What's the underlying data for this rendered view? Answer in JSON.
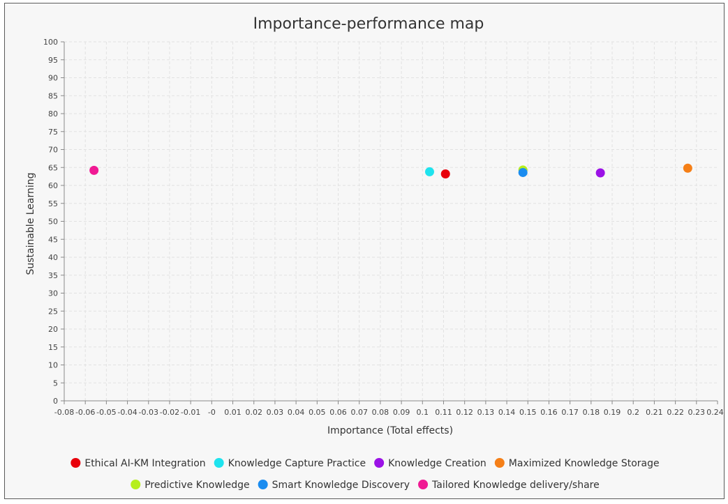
{
  "chart_data": {
    "type": "scatter",
    "title": "Importance-performance map",
    "xlabel": "Importance (Total effects)",
    "ylabel": "Sustainable Learning",
    "xlim": [
      -0.08,
      0.249
    ],
    "ylim": [
      0,
      100
    ],
    "x_tick_labels": [
      "-0.08",
      "-0.06",
      "-0.05",
      "-0.04",
      "-0.03",
      "-0.02",
      "-0.01",
      "-0",
      "0.01",
      "0.02",
      "0.03",
      "0.04",
      "0.05",
      "0.06",
      "0.07",
      "0.08",
      "0.09",
      "0.1",
      "0.11",
      "0.12",
      "0.13",
      "0.14",
      "0.15",
      "0.16",
      "0.17",
      "0.18",
      "0.19",
      "0.2",
      "0.21",
      "0.22",
      "0.23",
      "0.249"
    ],
    "y_ticks": [
      0,
      5,
      10,
      15,
      20,
      25,
      30,
      35,
      40,
      45,
      50,
      55,
      60,
      65,
      70,
      75,
      80,
      85,
      90,
      95,
      100
    ],
    "grid": true,
    "legend_position": "bottom",
    "series": [
      {
        "name": "Ethical AI-KM Integration",
        "color": "#e8000b",
        "x": 0.112,
        "y": 63.2
      },
      {
        "name": "Knowledge Capture Practice",
        "color": "#1ee3ee",
        "x": 0.104,
        "y": 63.8
      },
      {
        "name": "Knowledge Creation",
        "color": "#9b12e6",
        "x": 0.19,
        "y": 63.5
      },
      {
        "name": "Maximized Knowledge Storage",
        "color": "#f57f17",
        "x": 0.234,
        "y": 64.8
      },
      {
        "name": "Predictive Knowledge",
        "color": "#b6ee1d",
        "x": 0.151,
        "y": 64.3
      },
      {
        "name": "Smart Knowledge Discovery",
        "color": "#1a8cf0",
        "x": 0.151,
        "y": 63.6
      },
      {
        "name": "Tailored Knowledge delivery/share",
        "color": "#f01a94",
        "x": -0.065,
        "y": 64.2
      }
    ]
  }
}
